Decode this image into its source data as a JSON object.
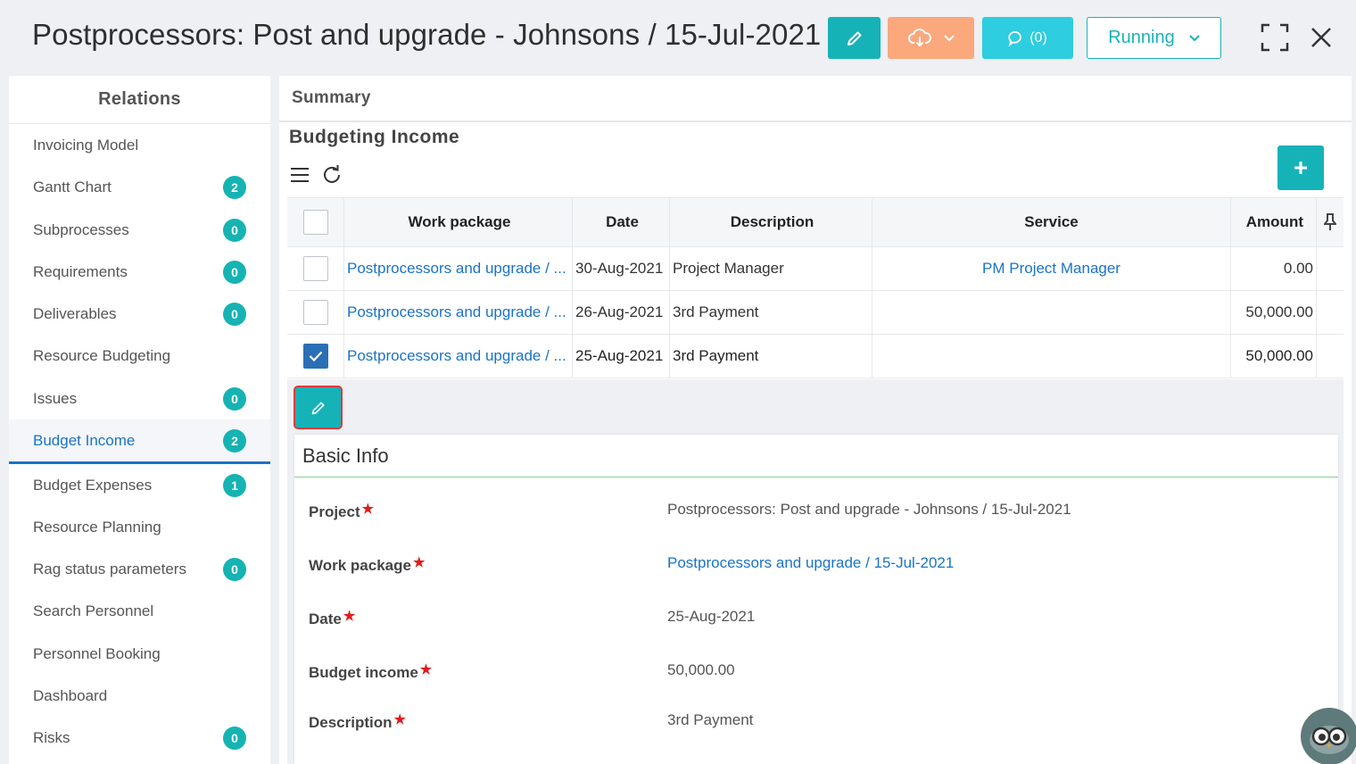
{
  "header": {
    "title": "Postprocessors: Post and upgrade - Johnsons / 15-Jul-2021",
    "comments_label": "(0)",
    "status_label": "Running"
  },
  "relations": {
    "title": "Relations",
    "items": [
      {
        "label": "Invoicing Model",
        "badge": ""
      },
      {
        "label": "Gantt Chart",
        "badge": "2"
      },
      {
        "label": "Subprocesses",
        "badge": "0"
      },
      {
        "label": "Requirements",
        "badge": "0"
      },
      {
        "label": "Deliverables",
        "badge": "0"
      },
      {
        "label": "Resource Budgeting",
        "badge": ""
      },
      {
        "label": "Issues",
        "badge": "0"
      },
      {
        "label": "Budget Income",
        "badge": "2"
      },
      {
        "label": "Budget Expenses",
        "badge": "1"
      },
      {
        "label": "Resource Planning",
        "badge": ""
      },
      {
        "label": "Rag status parameters",
        "badge": "0"
      },
      {
        "label": "Search Personnel",
        "badge": ""
      },
      {
        "label": "Personnel Booking",
        "badge": ""
      },
      {
        "label": "Dashboard",
        "badge": ""
      },
      {
        "label": "Risks",
        "badge": "0"
      }
    ]
  },
  "summary": {
    "tab_label": "Summary",
    "section_title": "Budgeting Income"
  },
  "table": {
    "columns": {
      "work_package": "Work package",
      "date": "Date",
      "description": "Description",
      "service": "Service",
      "amount": "Amount"
    },
    "rows": [
      {
        "work_package": "Postprocessors and upgrade / ...",
        "date": "30-Aug-2021",
        "description": "Project Manager",
        "service": "PM Project Manager",
        "amount": "0.00",
        "checked": false
      },
      {
        "work_package": "Postprocessors and upgrade / ...",
        "date": "26-Aug-2021",
        "description": "3rd Payment",
        "service": "",
        "amount": "50,000.00",
        "checked": false
      },
      {
        "work_package": "Postprocessors and upgrade / ...",
        "date": "25-Aug-2021",
        "description": "3rd Payment",
        "service": "",
        "amount": "50,000.00",
        "checked": true
      }
    ]
  },
  "basic_info": {
    "title": "Basic Info",
    "fields": [
      {
        "label": "Project",
        "value": "Postprocessors: Post and upgrade - Johnsons / 15-Jul-2021"
      },
      {
        "label": "Work package",
        "value": "Postprocessors and upgrade / 15-Jul-2021"
      },
      {
        "label": "Date",
        "value": "25-Aug-2021"
      },
      {
        "label": "Budget income",
        "value": "50,000.00"
      },
      {
        "label": "Description",
        "value": "3rd Payment"
      }
    ]
  },
  "colors": {
    "teal": "#15b3b8",
    "orange": "#fba87d",
    "cyan": "#2ecde0",
    "link_blue": "#1a73c8"
  },
  "icons": {
    "edit": "pencil-icon",
    "cloud": "cloud-download-icon",
    "comments": "comment-icon",
    "fullscreen": "expand-icon",
    "close": "close-icon",
    "menu": "menu-icon",
    "refresh": "refresh-icon",
    "add": "plus-icon",
    "pin": "pin-icon"
  }
}
